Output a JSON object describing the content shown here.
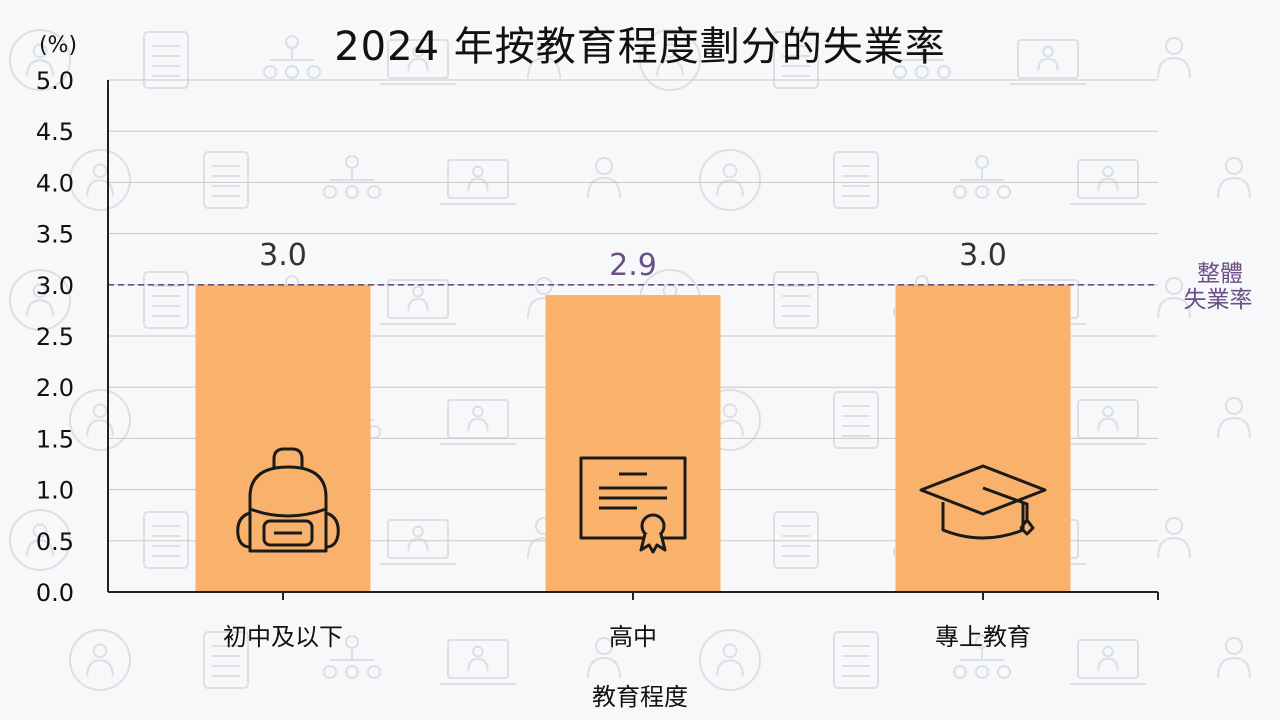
{
  "chart_data": {
    "type": "bar",
    "title": "2024 年按教育程度劃分的失業率",
    "ylabel": "(%)",
    "xlabel": "教育程度",
    "categories": [
      "初中及以下",
      "高中",
      "專上教育"
    ],
    "values": [
      3.0,
      2.9,
      3.0
    ],
    "value_labels": [
      "3.0",
      "2.9",
      "3.0"
    ],
    "ylim": [
      0,
      5.0
    ],
    "yticks": [
      "0.0",
      "0.5",
      "1.0",
      "1.5",
      "2.0",
      "2.5",
      "3.0",
      "3.5",
      "4.0",
      "4.5",
      "5.0"
    ],
    "ytick_values": [
      0,
      0.5,
      1.0,
      1.5,
      2.0,
      2.5,
      3.0,
      3.5,
      4.0,
      4.5,
      5.0
    ],
    "grid": true,
    "reference_line": {
      "value": 3.0,
      "label_line1": "整體",
      "label_line2": "失業率"
    },
    "bar_icons": [
      "backpack-icon",
      "diploma-icon",
      "graduation-cap-icon"
    ],
    "colors": {
      "bar": "#f9b26b",
      "reference": "#6b4f87",
      "highlight_label": "#6b4f87",
      "text": "#111111",
      "grid": "#c8c8c8",
      "background_icons": "#dcdfe3"
    }
  }
}
